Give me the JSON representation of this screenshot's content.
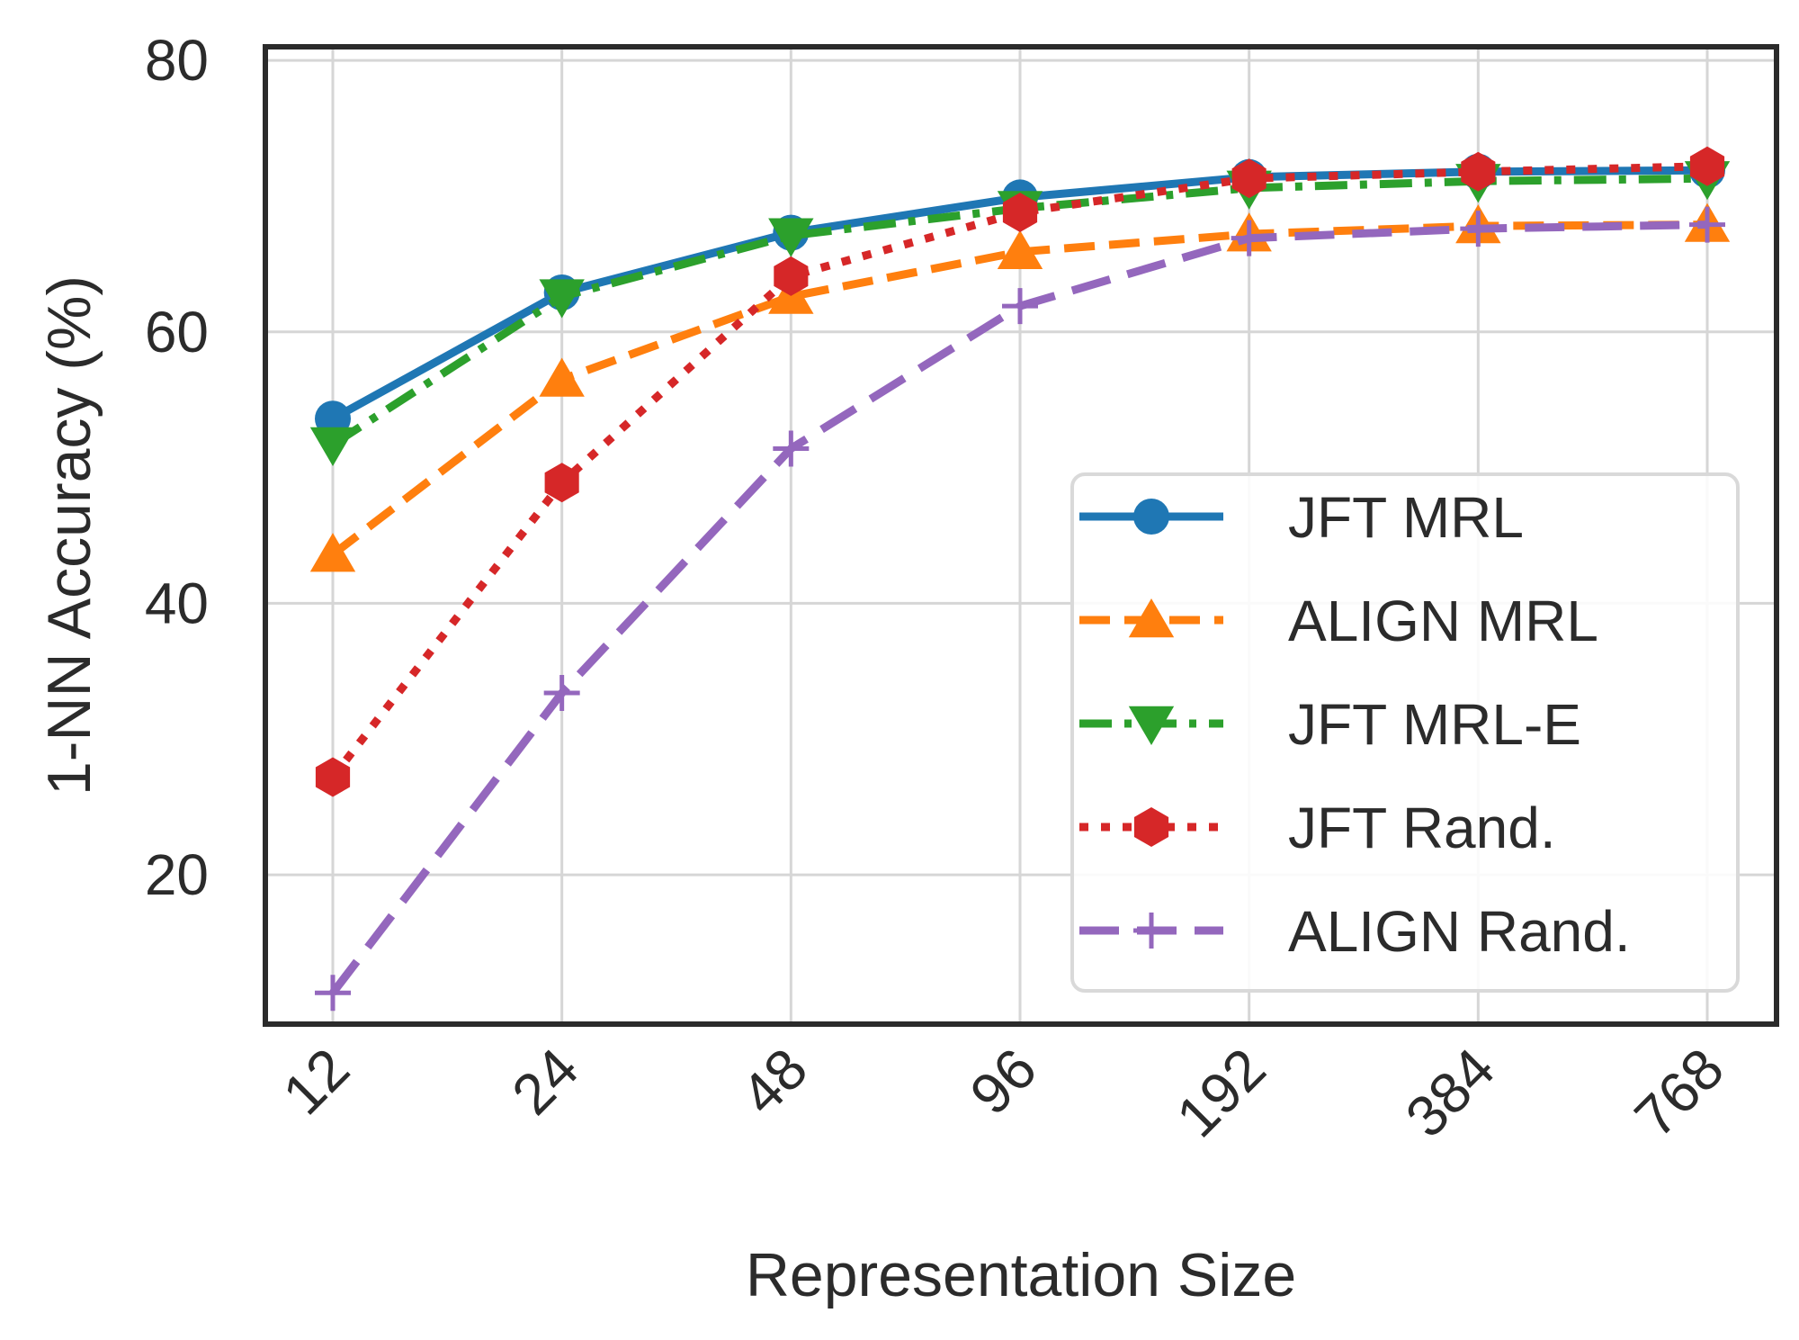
{
  "chart_data": {
    "type": "line",
    "title": "",
    "xlabel": "Representation Size",
    "ylabel": "1-NN Accuracy (%)",
    "categories": [
      "12",
      "24",
      "48",
      "96",
      "192",
      "384",
      "768"
    ],
    "ylim": [
      9,
      81
    ],
    "yticks": [
      "20",
      "40",
      "60",
      "80"
    ],
    "grid": true,
    "legend": "lower-right",
    "series": [
      {
        "name": "JFT MRL",
        "color": "#1f77b4",
        "values": [
          53.6,
          62.9,
          67.3,
          69.9,
          71.4,
          71.8,
          71.9
        ]
      },
      {
        "name": "ALIGN MRL",
        "color": "#ff7f0e",
        "values": [
          43.6,
          56.5,
          62.6,
          65.9,
          67.2,
          67.8,
          67.9
        ]
      },
      {
        "name": "JFT MRL-E",
        "color": "#2ca02c",
        "values": [
          51.7,
          62.6,
          67.1,
          69.1,
          70.6,
          71.1,
          71.3
        ]
      },
      {
        "name": "JFT Rand.",
        "color": "#d62728",
        "values": [
          27.2,
          48.9,
          64.1,
          68.8,
          71.3,
          71.8,
          72.2
        ]
      },
      {
        "name": "ALIGN Rand.",
        "color": "#9467bd",
        "values": [
          11.3,
          33.4,
          51.4,
          61.9,
          66.9,
          67.6,
          67.9
        ]
      }
    ]
  }
}
